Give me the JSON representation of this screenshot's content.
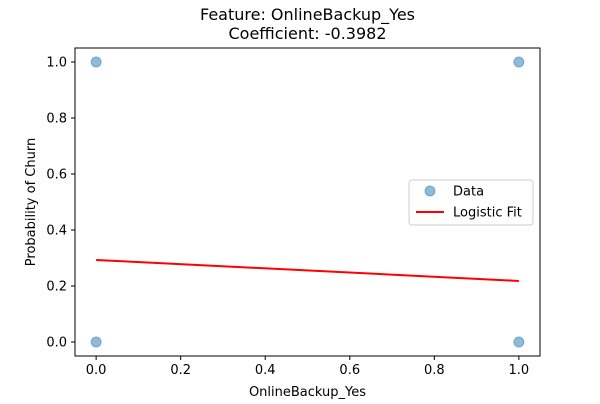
{
  "chart_data": {
    "type": "scatter",
    "title_line1": "Feature: OnlineBackup_Yes",
    "title_line2": "Coefficient: -0.3982",
    "xlabel": "OnlineBackup_Yes",
    "ylabel": "Probability of Churn",
    "xlim": [
      -0.05,
      1.05
    ],
    "ylim": [
      -0.05,
      1.05
    ],
    "xticks": [
      0.0,
      0.2,
      0.4,
      0.6,
      0.8,
      1.0
    ],
    "yticks": [
      0.0,
      0.2,
      0.4,
      0.6,
      0.8,
      1.0
    ],
    "xtick_labels": [
      "0.0",
      "0.2",
      "0.4",
      "0.6",
      "0.8",
      "1.0"
    ],
    "ytick_labels": [
      "0.0",
      "0.2",
      "0.4",
      "0.6",
      "0.8",
      "1.0"
    ],
    "grid": false,
    "legend_position": "center-right",
    "series": [
      {
        "name": "Data",
        "kind": "scatter",
        "color": "#1f77b4",
        "alpha": 0.5,
        "x": [
          0,
          0,
          1,
          1
        ],
        "y": [
          0,
          1,
          0,
          1
        ]
      },
      {
        "name": "Logistic Fit",
        "kind": "line",
        "color": "#ff0000",
        "x": [
          0,
          1
        ],
        "y": [
          0.293,
          0.218
        ]
      }
    ]
  }
}
